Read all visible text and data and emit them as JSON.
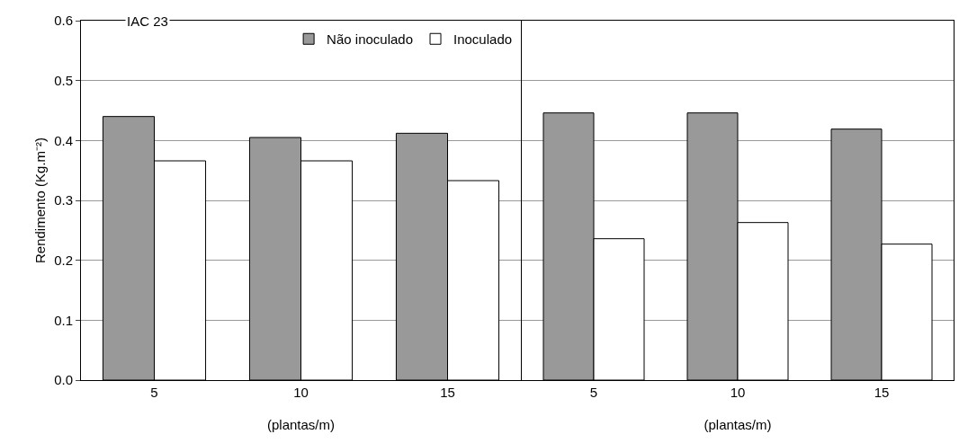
{
  "chart_data": [
    {
      "type": "bar",
      "title": "IAC 23",
      "categories": [
        "5",
        "10",
        "15"
      ],
      "xlabel": "(plantas/m)",
      "ylabel": "Rendimento (Kg.m⁻²)",
      "ylim": [
        0,
        0.6
      ],
      "yticks": [
        {
          "value": 0,
          "label": "0.0"
        },
        0.1,
        0.2,
        0.3,
        0.4,
        0.5,
        0.6
      ],
      "grid": "y",
      "legend": "top right",
      "series": [
        {
          "name": "Não inoculado",
          "color": "#999999",
          "values": [
            0.44,
            0.405,
            0.412
          ]
        },
        {
          "name": "Inoculado",
          "color": "#ffffff",
          "values": [
            0.366,
            0.366,
            0.333
          ]
        }
      ]
    },
    {
      "type": "bar",
      "categories": [
        "5",
        "10",
        "15"
      ],
      "xlabel": "(plantas/m)",
      "ylim": [
        0,
        0.6
      ],
      "yticks": [
        0,
        0.1,
        0.2,
        0.3,
        0.4,
        0.5,
        0.6
      ],
      "grid": "y",
      "tick_labels": "x",
      "series": [
        {
          "color": "#999999",
          "values": [
            0.446,
            0.446,
            0.419
          ]
        },
        {
          "color": "#ffffff",
          "values": [
            0.236,
            0.263,
            0.227
          ]
        }
      ]
    }
  ]
}
